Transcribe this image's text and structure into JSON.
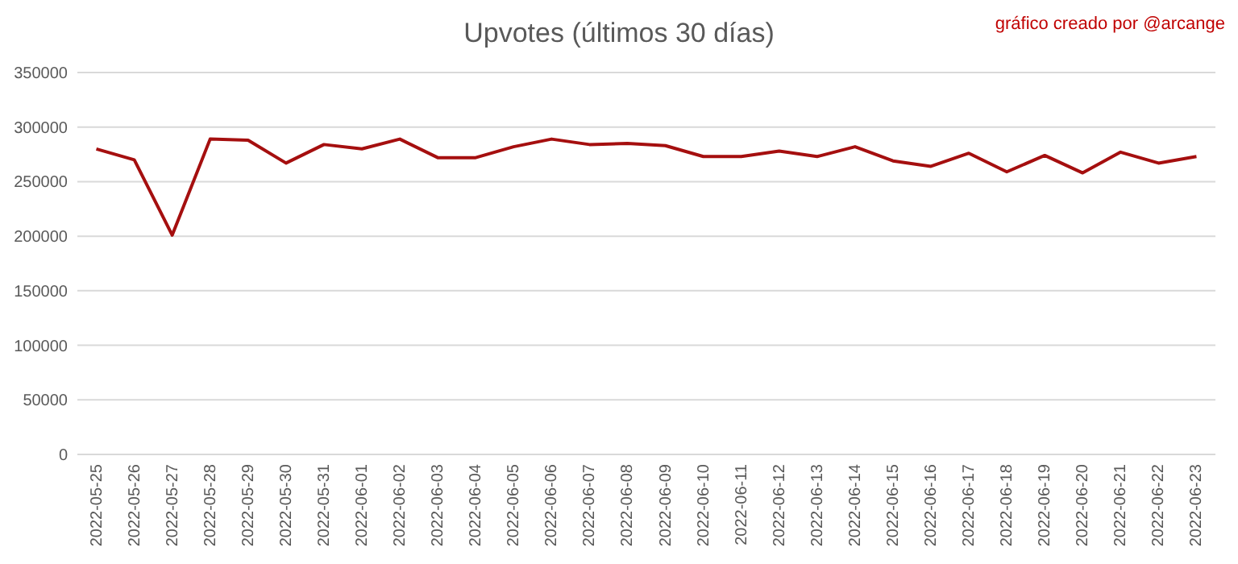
{
  "chart_data": {
    "type": "line",
    "title": "Upvotes (últimos 30 días)",
    "annotations": [
      "gráfico creado por @arcange"
    ],
    "categories": [
      "2022-05-25",
      "2022-05-26",
      "2022-05-27",
      "2022-05-28",
      "2022-05-29",
      "2022-05-30",
      "2022-05-31",
      "2022-06-01",
      "2022-06-02",
      "2022-06-03",
      "2022-06-04",
      "2022-06-05",
      "2022-06-06",
      "2022-06-07",
      "2022-06-08",
      "2022-06-09",
      "2022-06-10",
      "2022-06-11",
      "2022-06-12",
      "2022-06-13",
      "2022-06-14",
      "2022-06-15",
      "2022-06-16",
      "2022-06-17",
      "2022-06-18",
      "2022-06-19",
      "2022-06-20",
      "2022-06-21",
      "2022-06-22",
      "2022-06-23"
    ],
    "series": [
      {
        "color": "#a50f0f",
        "values": [
          280000,
          270000,
          201000,
          289000,
          288000,
          267000,
          284000,
          280000,
          289000,
          272000,
          272000,
          282000,
          289000,
          284000,
          285000,
          283000,
          273000,
          273000,
          278000,
          273000,
          282000,
          269000,
          264000,
          276000,
          259000,
          274000,
          258000,
          277000,
          267000,
          273000
        ]
      }
    ],
    "ylim": [
      0,
      350000
    ],
    "yticks": [
      0,
      50000,
      100000,
      150000,
      200000,
      250000,
      300000,
      350000
    ],
    "grid": "y",
    "marker": "none",
    "line_style": "solid"
  }
}
